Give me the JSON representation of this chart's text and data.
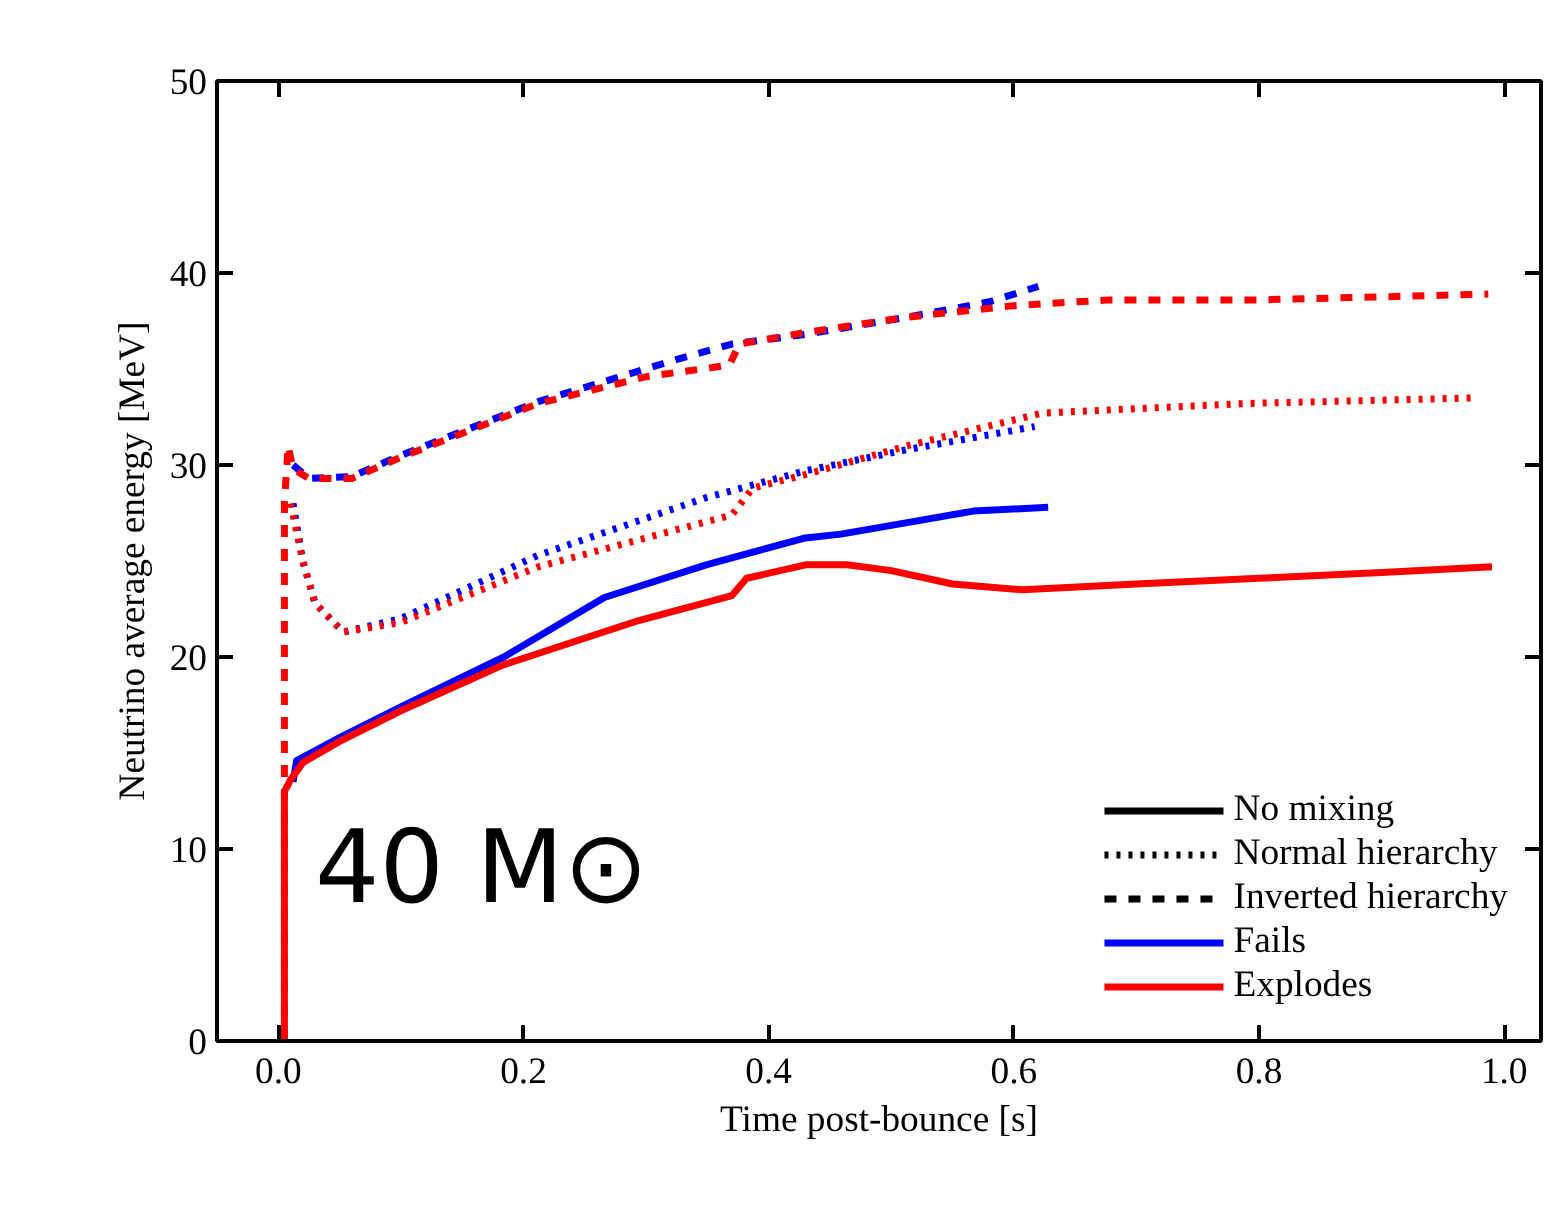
{
  "chart_data": {
    "type": "line",
    "xlabel": "Time post-bounce [s]",
    "ylabel": "Neutrino average energy [MeV]",
    "xlim": [
      -0.05,
      1.03
    ],
    "ylim": [
      0,
      50
    ],
    "xticks": [
      {
        "value": 0,
        "label": "0.0"
      },
      {
        "value": 0.2,
        "label": "0.2"
      },
      {
        "value": 0.4,
        "label": "0.4"
      },
      {
        "value": 0.6,
        "label": "0.6"
      },
      {
        "value": 0.8,
        "label": "0.8"
      },
      {
        "value": 1.0,
        "label": "1.0"
      }
    ],
    "yticks": [
      0,
      10,
      20,
      30,
      40,
      50
    ],
    "grid": false,
    "legend": "bottom right",
    "annotations": [
      "40 M⊙"
    ],
    "series": [
      {
        "color": "#0000ff",
        "line_style": "solid",
        "x": [
          0.012,
          0.015,
          0.05,
          0.1,
          0.184,
          0.266,
          0.349,
          0.43,
          0.459,
          0.513,
          0.567,
          0.628
        ],
        "values": [
          13.5,
          14.6,
          15.8,
          17.4,
          20,
          23.1,
          24.8,
          26.2,
          26.4,
          27,
          27.6,
          27.8
        ]
      },
      {
        "color": "#ff0000",
        "line_style": "solid",
        "x": [
          0.005,
          0.005,
          0.01,
          0.02,
          0.05,
          0.1,
          0.184,
          0.294,
          0.37,
          0.382,
          0.43,
          0.464,
          0.5,
          0.55,
          0.607,
          0.7,
          0.8,
          0.9,
          0.99
        ],
        "values": [
          0,
          13,
          13.6,
          14.5,
          15.6,
          17.2,
          19.6,
          21.9,
          23.2,
          24.1,
          24.8,
          24.8,
          24.5,
          23.8,
          23.5,
          23.8,
          24.1,
          24.4,
          24.7
        ]
      },
      {
        "color": "#0000ff",
        "line_style": "dotted",
        "x": [
          0.012,
          0.02,
          0.03,
          0.053,
          0.1,
          0.212,
          0.349,
          0.43,
          0.513,
          0.617
        ],
        "values": [
          28,
          25,
          22.8,
          21.3,
          22,
          25.3,
          28.3,
          29.7,
          30.8,
          32
        ]
      },
      {
        "color": "#ff0000",
        "line_style": "dotted",
        "x": [
          0.01,
          0.02,
          0.03,
          0.053,
          0.1,
          0.212,
          0.37,
          0.387,
          0.43,
          0.513,
          0.623,
          0.788,
          0.979
        ],
        "values": [
          28,
          25,
          22.8,
          21.3,
          21.8,
          24.7,
          27.4,
          28.8,
          29.5,
          31,
          32.7,
          33.2,
          33.5
        ]
      },
      {
        "color": "#0000ff",
        "line_style": "dashed",
        "x": [
          0.012,
          0.025,
          0.06,
          0.1,
          0.212,
          0.32,
          0.37,
          0.43,
          0.513,
          0.58,
          0.62
        ],
        "values": [
          30,
          29.3,
          29.4,
          30.5,
          33.3,
          35.4,
          36.3,
          36.8,
          37.7,
          38.5,
          39.3
        ]
      },
      {
        "color": "#ff0000",
        "line_style": "dashed",
        "x": [
          0.005,
          0.005,
          0.008,
          0.012,
          0.025,
          0.06,
          0.1,
          0.212,
          0.3,
          0.368,
          0.376,
          0.43,
          0.513,
          0.6,
          0.678,
          0.8,
          0.987
        ],
        "values": [
          0,
          28,
          31,
          29.8,
          29.3,
          29.3,
          30.4,
          33.2,
          34.6,
          35.2,
          36.3,
          36.9,
          37.7,
          38.3,
          38.6,
          38.6,
          38.9
        ]
      },
      {
        "name": "No mixing",
        "color": "#000000",
        "line_style": "solid"
      },
      {
        "name": "Normal hierarchy",
        "color": "#000000",
        "line_style": "dotted"
      },
      {
        "name": "Inverted hierarchy",
        "color": "#000000",
        "line_style": "dashed"
      },
      {
        "name": "Fails",
        "color": "#0000ff",
        "line_style": "solid"
      },
      {
        "name": "Explodes",
        "color": "#ff0000",
        "line_style": "solid"
      }
    ]
  }
}
